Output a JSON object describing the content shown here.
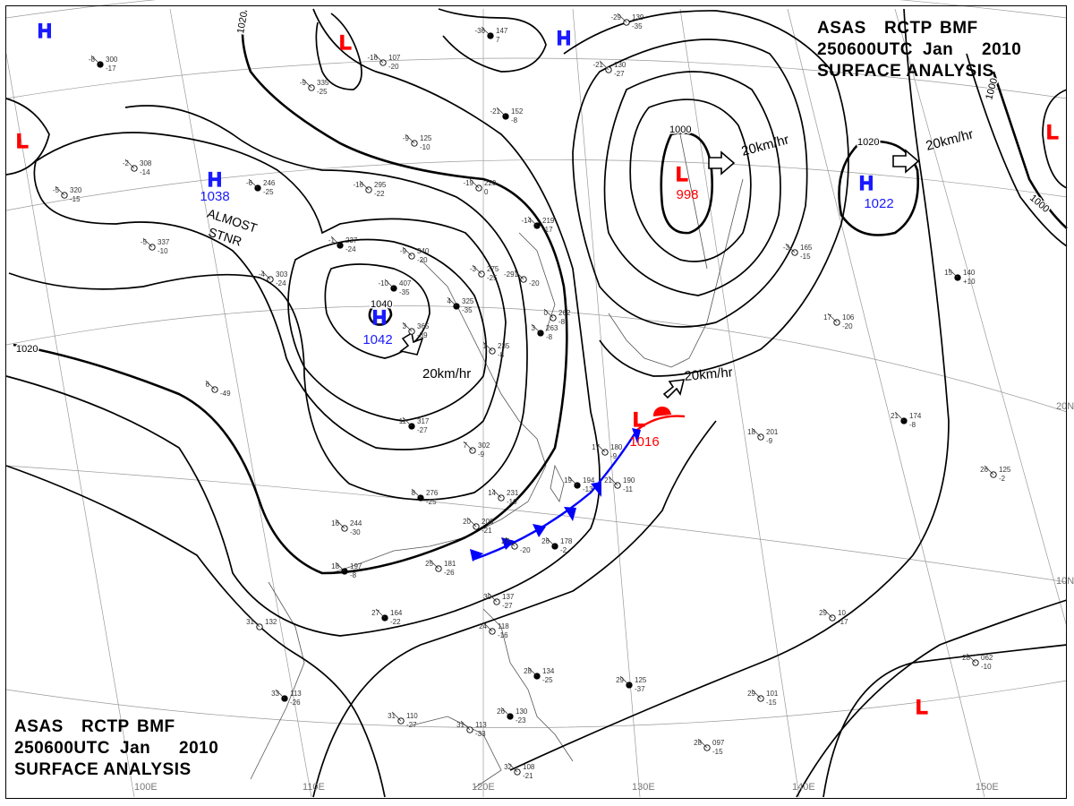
{
  "header_block": {
    "line1": [
      "ASAS",
      "RCTP",
      "BMF"
    ],
    "line2": [
      "250600UTC",
      "Jan",
      "2010"
    ],
    "line3": "SURFACE ANALYSIS"
  },
  "footer_block": {
    "line1": [
      "ASAS",
      "RCTP",
      "BMF"
    ],
    "line2": [
      "250600UTC",
      "Jan",
      "2010"
    ],
    "line3": "SURFACE ANALYSIS"
  },
  "isobar_labels": [
    "1020",
    "1020",
    "1000",
    "1020",
    "1000",
    "1000",
    "1040"
  ],
  "pressure_centers": [
    {
      "type": "H",
      "value": "1038",
      "note": "ALMOST STNR",
      "color": "#1a1aff"
    },
    {
      "type": "H",
      "value": "1042",
      "color": "#1a1aff"
    },
    {
      "type": "L",
      "value": "998",
      "color": "#ff0000"
    },
    {
      "type": "H",
      "value": "1022",
      "color": "#1a1aff"
    },
    {
      "type": "L",
      "value": "1016",
      "color": "#ff0000"
    },
    {
      "type": "H",
      "value": "",
      "color": "#1a1aff"
    },
    {
      "type": "H",
      "value": "",
      "color": "#1a1aff"
    },
    {
      "type": "L",
      "value": "",
      "color": "#ff0000"
    },
    {
      "type": "L",
      "value": "",
      "color": "#ff0000"
    },
    {
      "type": "L",
      "value": "",
      "color": "#ff0000"
    },
    {
      "type": "L",
      "value": "",
      "color": "#ff0000"
    }
  ],
  "motion_vectors": [
    "20km/hr",
    "20km/hr",
    "20km/hr",
    "20km/hr"
  ],
  "lat_labels": [
    "20N",
    "10N"
  ],
  "lon_labels": [
    "100E",
    "110E",
    "120E",
    "130E",
    "140E",
    "150E"
  ],
  "front": {
    "type": "stationary/cold",
    "cold_color": "#0000ff",
    "warm_color": "#ff0000"
  },
  "stations": [
    [
      "-8",
      "300",
      "-17"
    ],
    [
      "-16",
      "107",
      "-20"
    ],
    [
      "-9",
      "335",
      "-25"
    ],
    [
      "-36",
      "147",
      "7"
    ],
    [
      "-29",
      "139",
      "-35"
    ],
    [
      "-21",
      "130",
      "-27"
    ],
    [
      "-21",
      "152",
      "-8"
    ],
    [
      "-9",
      "125",
      "-10"
    ],
    [
      "-2",
      "308",
      "-14"
    ],
    [
      "-6",
      "246",
      "-25"
    ],
    [
      "-16",
      "295",
      "-22"
    ],
    [
      "-19",
      "220",
      "0"
    ],
    [
      "-14",
      "219",
      "-17"
    ],
    [
      "-5",
      "320",
      "-15"
    ],
    [
      "-5",
      "337",
      "-10"
    ],
    [
      "-1",
      "237",
      "-24"
    ],
    [
      "-4",
      "303",
      "-24"
    ],
    [
      "-9",
      "340",
      "-20"
    ],
    [
      "-10",
      "407",
      "-35"
    ],
    [
      "-3",
      "275",
      "-25"
    ],
    [
      "-291",
      "",
      "-20"
    ],
    [
      "4",
      "325",
      "-35"
    ],
    [
      "3",
      "365",
      "-39"
    ],
    [
      "0",
      "262",
      "-8"
    ],
    [
      "3",
      "263",
      "-8"
    ],
    [
      "1",
      "235",
      "-8"
    ],
    [
      "-3",
      "165",
      "-15"
    ],
    [
      "15",
      "140",
      "+10"
    ],
    [
      "17",
      "106",
      "-20"
    ],
    [
      "6",
      "",
      "-49"
    ],
    [
      "11",
      "317",
      "-27"
    ],
    [
      "7",
      "302",
      "-9"
    ],
    [
      "17",
      "180",
      "-9"
    ],
    [
      "19",
      "194",
      "-13"
    ],
    [
      "21",
      "190",
      "-11"
    ],
    [
      "18",
      "201",
      "-9"
    ],
    [
      "21",
      "174",
      "-8"
    ],
    [
      "26",
      "125",
      "-2"
    ],
    [
      "14",
      "231",
      "-10"
    ],
    [
      "8",
      "276",
      "-25"
    ],
    [
      "20",
      "208",
      "-21"
    ],
    [
      "27",
      "",
      "-20"
    ],
    [
      "26",
      "178",
      "-2"
    ],
    [
      "25",
      "181",
      "-26"
    ],
    [
      "16",
      "244",
      "-30"
    ],
    [
      "18",
      "197",
      "-8"
    ],
    [
      "30",
      "137",
      "-27"
    ],
    [
      "24",
      "118",
      "-16"
    ],
    [
      "27",
      "164",
      "-22"
    ],
    [
      "31",
      "132",
      ""
    ],
    [
      "29",
      "10",
      "-17"
    ],
    [
      "29",
      "125",
      "-37"
    ],
    [
      "28",
      "062",
      "-10"
    ],
    [
      "28",
      "097",
      "-15"
    ],
    [
      "33",
      "113",
      "-26"
    ],
    [
      "31",
      "110",
      "-27"
    ],
    [
      "31",
      "113",
      "-33"
    ],
    [
      "28",
      "134",
      "-25"
    ],
    [
      "29",
      "101",
      "-15"
    ],
    [
      "32",
      "108",
      "-21"
    ],
    [
      "26",
      "130",
      "-23"
    ]
  ]
}
